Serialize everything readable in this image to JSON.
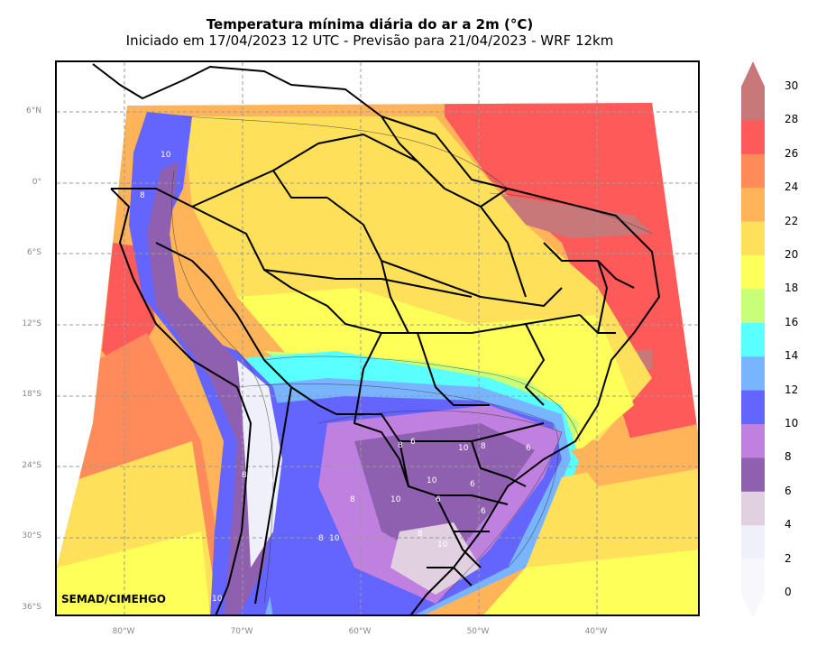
{
  "title": "Temperatura mínima diária do ar a 2m (°C)",
  "subtitle": "Iniciado em 17/04/2023 12 UTC - Previsão para 21/04/2023 - WRF 12km",
  "credit": "SEMAD/CIMEHGO",
  "lat_labels": [
    "6°N",
    "0°",
    "6°S",
    "12°S",
    "18°S",
    "24°S",
    "30°S",
    "36°S"
  ],
  "lon_labels": [
    "80°W",
    "70°W",
    "60°W",
    "50°W",
    "40°W"
  ],
  "colorbar": {
    "levels": [
      "30",
      "28",
      "26",
      "24",
      "22",
      "20",
      "18",
      "16",
      "14",
      "12",
      "10",
      "8",
      "6",
      "4",
      "2",
      "0"
    ],
    "colors": [
      "#c87878",
      "#ff5a5a",
      "#ff8a5a",
      "#ffb45a",
      "#ffe05a",
      "#ffff5a",
      "#c8ff78",
      "#5affff",
      "#78b4ff",
      "#6464ff",
      "#c080e0",
      "#9060b0",
      "#e0d0e0",
      "#f0f0fa",
      "#f8f8fc"
    ]
  },
  "contour_labels": [
    "8",
    "6",
    "10",
    "8",
    "6",
    "10",
    "6",
    "8",
    "10",
    "6",
    "8",
    "10",
    "8",
    "6",
    "10",
    "6",
    "8",
    "10",
    "8",
    "10"
  ]
}
